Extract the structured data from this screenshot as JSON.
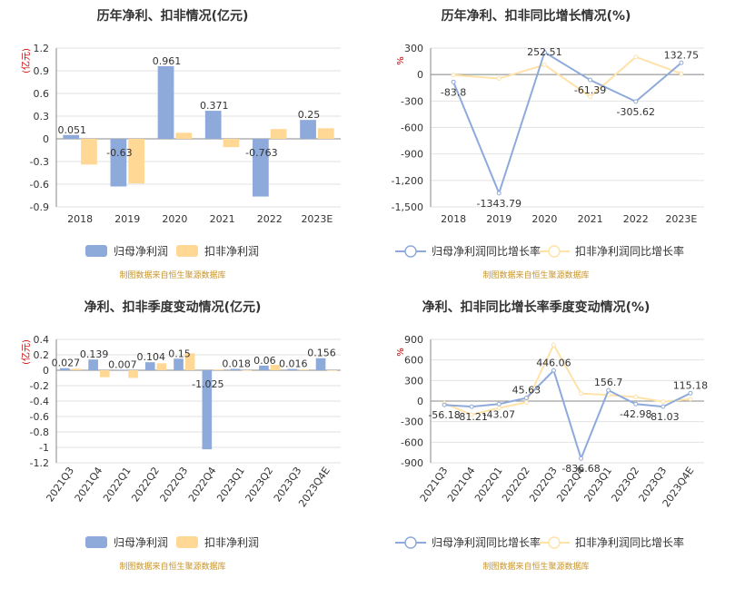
{
  "colors": {
    "series1": "#8eaadb",
    "series2": "#ffd896",
    "line1": "#8eaadb",
    "line2": "#ffe2a8",
    "unit": "#cc0000",
    "source": "#c8942a",
    "grid": "#e2e2e2",
    "axis": "#888888",
    "label": "#333333",
    "title": "#333333"
  },
  "source_note": "制图数据来自恒生聚源数据库",
  "chart_data": [
    {
      "type": "bar",
      "title": "历年净利、扣非情况(亿元)",
      "ylabel": "(亿元)",
      "categories": [
        "2018",
        "2019",
        "2020",
        "2021",
        "2022",
        "2023E"
      ],
      "ylim": [
        -0.9,
        1.2
      ],
      "yticks": [
        1.2,
        0.9,
        0.6,
        0.3,
        0,
        -0.3,
        -0.6,
        -0.9
      ],
      "ytick_labels": [
        "1.2",
        "0.9",
        "0.6",
        "0.3",
        "0",
        "-0.3",
        "-0.6",
        "-0.9"
      ],
      "grid": true,
      "legend": "bottom",
      "label_series": 0,
      "series": [
        {
          "name": "归母净利润",
          "values": [
            0.051,
            -0.63,
            0.961,
            0.371,
            -0.763,
            0.25
          ],
          "labels": [
            "0.051",
            "-0.63",
            "0.961",
            "0.371",
            "-0.763",
            "0.25"
          ]
        },
        {
          "name": "扣非净利润",
          "values": [
            -0.34,
            -0.59,
            0.08,
            -0.11,
            0.13,
            0.14
          ]
        }
      ]
    },
    {
      "type": "line",
      "title": "历年净利、扣非同比增长情况(%)",
      "ylabel": "%",
      "categories": [
        "2018",
        "2019",
        "2020",
        "2021",
        "2022",
        "2023E"
      ],
      "ylim": [
        -1500,
        300
      ],
      "yticks": [
        300,
        0,
        -300,
        -600,
        -900,
        -1200,
        -1500
      ],
      "ytick_labels": [
        "300",
        "0",
        "-300",
        "-600",
        "-900",
        "-1,200",
        "-1,500"
      ],
      "grid": true,
      "legend": "bottom",
      "label_series": 0,
      "series": [
        {
          "name": "归母净利润同比增长率",
          "values": [
            -83.8,
            -1343.79,
            252.51,
            -61.39,
            -305.62,
            132.75
          ],
          "labels": [
            "-83.8",
            "-1343.79",
            "252.51",
            "-61.39",
            "-305.62",
            "132.75"
          ]
        },
        {
          "name": "扣非净利润同比增长率",
          "values": [
            -5,
            -45,
            110,
            -250,
            200,
            10
          ]
        }
      ]
    },
    {
      "type": "bar",
      "title": "净利、扣非季度变动情况(亿元)",
      "ylabel": "(亿元)",
      "categories": [
        "2021Q3",
        "2021Q4",
        "2022Q1",
        "2022Q2",
        "2022Q3",
        "2022Q4",
        "2023Q1",
        "2023Q2",
        "2023Q3",
        "2023Q4E"
      ],
      "ylim": [
        -1.2,
        0.4
      ],
      "yticks": [
        0.4,
        0.2,
        0,
        -0.2,
        -0.4,
        -0.6,
        -0.8,
        -1,
        -1.2
      ],
      "ytick_labels": [
        "0.4",
        "0.2",
        "0",
        "-0.2",
        "-0.4",
        "-0.6",
        "-0.8",
        "-1",
        "-1.2"
      ],
      "grid": true,
      "legend": "bottom",
      "rotate_x": true,
      "label_series": 0,
      "series": [
        {
          "name": "归母净利润",
          "values": [
            0.027,
            0.139,
            0.007,
            0.104,
            0.15,
            -1.025,
            0.018,
            0.06,
            0.016,
            0.156
          ],
          "labels": [
            "0.027",
            "0.139",
            "0.007",
            "0.104",
            "0.15",
            "-1.025",
            "0.018",
            "0.06",
            "0.016",
            "0.156"
          ]
        },
        {
          "name": "扣非净利润",
          "values": [
            0.02,
            -0.09,
            -0.1,
            0.09,
            0.22,
            0.01,
            0.0,
            0.07,
            0.01,
            0.0
          ]
        }
      ]
    },
    {
      "type": "line",
      "title": "净利、扣非同比增长率季度变动情况(%)",
      "ylabel": "%",
      "categories": [
        "2021Q3",
        "2021Q4",
        "2022Q1",
        "2022Q2",
        "2022Q3",
        "2022Q4",
        "2023Q1",
        "2023Q2",
        "2023Q3",
        "2023Q4E"
      ],
      "ylim": [
        -900,
        900
      ],
      "yticks": [
        900,
        600,
        300,
        0,
        -300,
        -600,
        -900
      ],
      "ytick_labels": [
        "900",
        "600",
        "300",
        "0",
        "-300",
        "-600",
        "-900"
      ],
      "grid": true,
      "legend": "bottom",
      "rotate_x": true,
      "label_series": 0,
      "series": [
        {
          "name": "归母净利润同比增长率",
          "values": [
            -56.18,
            -81.21,
            -43.07,
            45.63,
            446.06,
            -836.68,
            156.7,
            -42.98,
            -81.03,
            115.18
          ],
          "labels": [
            "-56.18",
            "-81.21",
            "-43.07",
            "45.63",
            "446.06",
            "-836.68",
            "156.7",
            "-42.98",
            "-81.03",
            "115.18"
          ]
        },
        {
          "name": "扣非净利润同比增长率",
          "values": [
            -30,
            -200,
            -100,
            -20,
            820,
            110,
            90,
            60,
            -10,
            30
          ]
        }
      ]
    }
  ]
}
